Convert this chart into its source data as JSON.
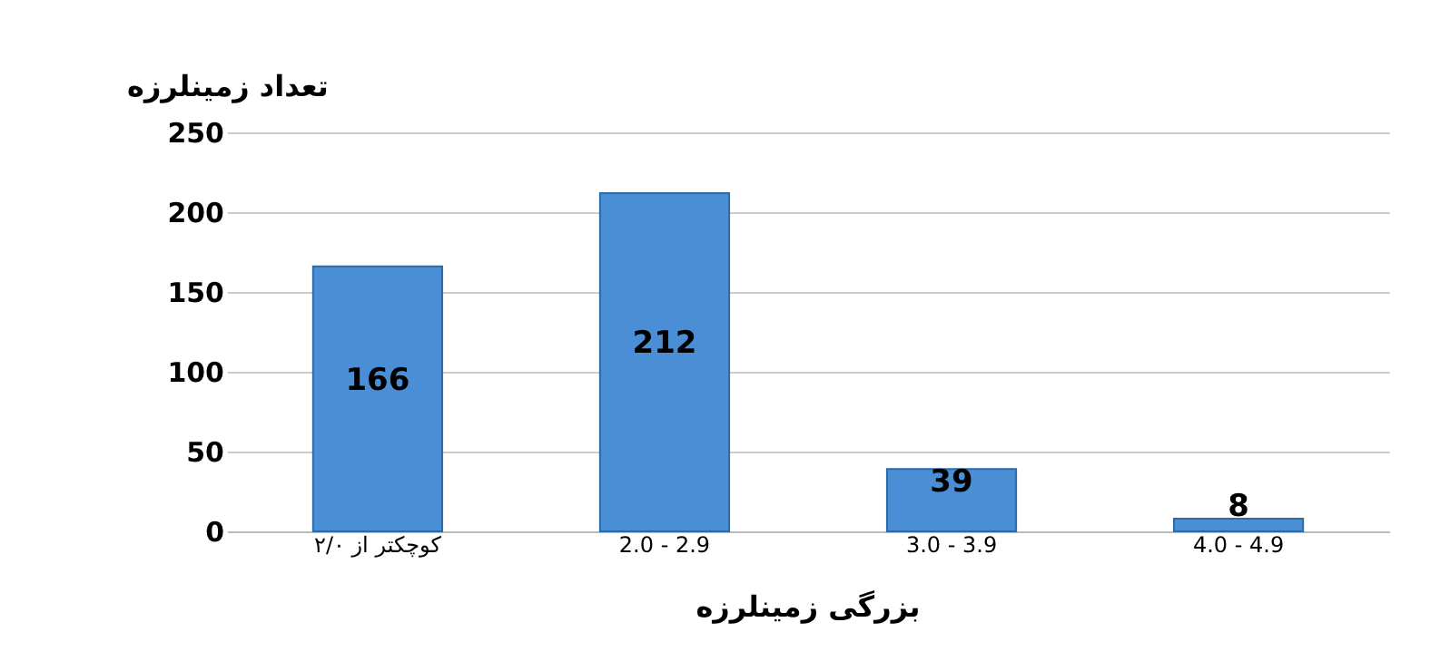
{
  "chart_data": {
    "type": "bar",
    "ylabel": "تعداد زمینلرزه",
    "xlabel": "بزرگی زمینلرزه",
    "categories": [
      "کوچکتر از ۲/۰",
      "2.0 - 2.9",
      "3.0 - 3.9",
      "4.0 - 4.9"
    ],
    "values": [
      166,
      212,
      39,
      8
    ],
    "color": "#4a8fd6",
    "ylim": [
      0,
      250
    ],
    "yticks": [
      0,
      50,
      100,
      150,
      200,
      250
    ],
    "grid": "y",
    "data_labels": true
  }
}
